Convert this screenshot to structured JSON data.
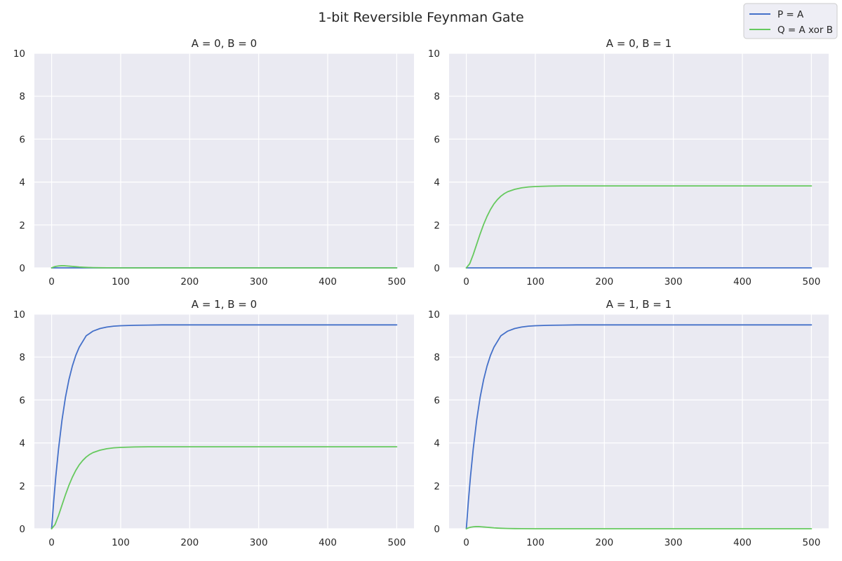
{
  "figure": {
    "title": "1-bit Reversible Feynman Gate"
  },
  "legend": {
    "position": "top-right",
    "entries": [
      {
        "label": "P = A",
        "color": "#4470c9"
      },
      {
        "label": "Q = A xor B",
        "color": "#66c95e"
      }
    ]
  },
  "style": {
    "axes_background": "#eaeaf2",
    "grid_color": "#ffffff",
    "text_color": "#262626"
  },
  "chart_data": [
    {
      "type": "line",
      "title": "A = 0, B = 0",
      "xlabel": "",
      "ylabel": "",
      "xlim": [
        -25,
        525
      ],
      "ylim": [
        0,
        10
      ],
      "xticks": [
        0,
        100,
        200,
        300,
        400,
        500
      ],
      "yticks": [
        0,
        2,
        4,
        6,
        8,
        10
      ],
      "grid": true,
      "series": [
        {
          "name": "P = A",
          "x": [
            0,
            500
          ],
          "y": [
            0,
            0
          ]
        },
        {
          "name": "Q = A xor B",
          "x": [
            0,
            3,
            6,
            10,
            14,
            18,
            22,
            26,
            30,
            35,
            40,
            45,
            50,
            60,
            70,
            80,
            100,
            150,
            500
          ],
          "y": [
            0,
            0.04,
            0.07,
            0.09,
            0.1,
            0.1,
            0.09,
            0.08,
            0.07,
            0.055,
            0.04,
            0.03,
            0.022,
            0.012,
            0.006,
            0.003,
            0.001,
            0,
            0
          ]
        }
      ]
    },
    {
      "type": "line",
      "title": "A = 0, B = 1",
      "xlabel": "",
      "ylabel": "",
      "xlim": [
        -25,
        525
      ],
      "ylim": [
        0,
        10
      ],
      "xticks": [
        0,
        100,
        200,
        300,
        400,
        500
      ],
      "yticks": [
        0,
        2,
        4,
        6,
        8,
        10
      ],
      "grid": true,
      "series": [
        {
          "name": "P = A",
          "x": [
            0,
            500
          ],
          "y": [
            0,
            0
          ]
        },
        {
          "name": "Q = A xor B",
          "x": [
            0,
            5,
            10,
            15,
            20,
            25,
            30,
            35,
            40,
            45,
            50,
            55,
            60,
            70,
            80,
            90,
            100,
            120,
            140,
            160,
            200,
            250,
            300,
            400,
            500
          ],
          "y": [
            0,
            0.2,
            0.62,
            1.1,
            1.58,
            2.02,
            2.4,
            2.72,
            2.98,
            3.18,
            3.34,
            3.46,
            3.55,
            3.66,
            3.73,
            3.77,
            3.79,
            3.81,
            3.82,
            3.82,
            3.82,
            3.82,
            3.82,
            3.82,
            3.82
          ]
        }
      ]
    },
    {
      "type": "line",
      "title": "A = 1, B = 0",
      "xlabel": "",
      "ylabel": "",
      "xlim": [
        -25,
        525
      ],
      "ylim": [
        0,
        10
      ],
      "xticks": [
        0,
        100,
        200,
        300,
        400,
        500
      ],
      "yticks": [
        0,
        2,
        4,
        6,
        8,
        10
      ],
      "grid": true,
      "series": [
        {
          "name": "P = A",
          "x": [
            0,
            3,
            6,
            10,
            15,
            20,
            25,
            30,
            35,
            40,
            50,
            60,
            70,
            80,
            90,
            100,
            120,
            140,
            160,
            200,
            300,
            400,
            500
          ],
          "y": [
            0,
            1.29,
            2.42,
            3.72,
            5.06,
            6.12,
            6.94,
            7.58,
            8.08,
            8.46,
            8.99,
            9.21,
            9.33,
            9.4,
            9.44,
            9.46,
            9.48,
            9.49,
            9.5,
            9.5,
            9.5,
            9.5,
            9.5
          ]
        },
        {
          "name": "Q = A xor B",
          "x": [
            0,
            5,
            10,
            15,
            20,
            25,
            30,
            35,
            40,
            45,
            50,
            55,
            60,
            70,
            80,
            90,
            100,
            120,
            140,
            160,
            200,
            250,
            300,
            400,
            500
          ],
          "y": [
            0,
            0.2,
            0.62,
            1.1,
            1.58,
            2.02,
            2.4,
            2.72,
            2.98,
            3.18,
            3.34,
            3.46,
            3.55,
            3.66,
            3.73,
            3.77,
            3.79,
            3.81,
            3.82,
            3.82,
            3.82,
            3.82,
            3.82,
            3.82,
            3.82
          ]
        }
      ]
    },
    {
      "type": "line",
      "title": "A = 1, B = 1",
      "xlabel": "",
      "ylabel": "",
      "xlim": [
        -25,
        525
      ],
      "ylim": [
        0,
        10
      ],
      "xticks": [
        0,
        100,
        200,
        300,
        400,
        500
      ],
      "yticks": [
        0,
        2,
        4,
        6,
        8,
        10
      ],
      "grid": true,
      "series": [
        {
          "name": "P = A",
          "x": [
            0,
            3,
            6,
            10,
            15,
            20,
            25,
            30,
            35,
            40,
            50,
            60,
            70,
            80,
            90,
            100,
            120,
            140,
            160,
            200,
            300,
            400,
            500
          ],
          "y": [
            0,
            1.29,
            2.42,
            3.72,
            5.06,
            6.12,
            6.94,
            7.58,
            8.08,
            8.46,
            8.99,
            9.21,
            9.33,
            9.4,
            9.44,
            9.46,
            9.48,
            9.49,
            9.5,
            9.5,
            9.5,
            9.5,
            9.5
          ]
        },
        {
          "name": "Q = A xor B",
          "x": [
            0,
            3,
            6,
            10,
            14,
            18,
            22,
            26,
            30,
            35,
            40,
            45,
            50,
            60,
            70,
            80,
            100,
            150,
            500
          ],
          "y": [
            0,
            0.04,
            0.07,
            0.09,
            0.1,
            0.1,
            0.09,
            0.08,
            0.07,
            0.055,
            0.04,
            0.03,
            0.022,
            0.012,
            0.006,
            0.003,
            0.001,
            0,
            0
          ]
        }
      ]
    }
  ]
}
